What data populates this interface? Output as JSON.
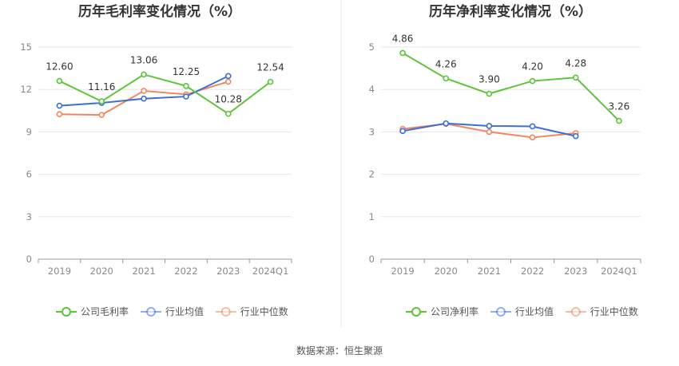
{
  "source": "数据来源：恒生聚源",
  "colors": {
    "company": "#5ec43a",
    "avg": "#3b6fd6",
    "median": "#f0875f"
  },
  "chart_data": [
    {
      "type": "line",
      "title": "历年毛利率变化情况（%）",
      "categories": [
        "2019",
        "2020",
        "2021",
        "2022",
        "2023",
        "2024Q1"
      ],
      "ylim": [
        0,
        15
      ],
      "yticks": [
        0,
        3,
        6,
        9,
        12,
        15
      ],
      "grid": true,
      "legend": "bottom",
      "series": [
        {
          "name": "公司毛利率",
          "color": "#5ec43a",
          "values": [
            12.6,
            11.16,
            13.06,
            12.25,
            10.28,
            12.54
          ],
          "labels": [
            "12.60",
            "11.16",
            "13.06",
            "12.25",
            "10.28",
            "12.54"
          ]
        },
        {
          "name": "行业均值",
          "color": "#3b6fd6",
          "values": [
            10.85,
            11.05,
            11.35,
            11.5,
            12.95,
            null
          ]
        },
        {
          "name": "行业中位数",
          "color": "#f0875f",
          "values": [
            10.25,
            10.2,
            11.9,
            11.65,
            12.55,
            null
          ]
        }
      ]
    },
    {
      "type": "line",
      "title": "历年净利率变化情况（%）",
      "categories": [
        "2019",
        "2020",
        "2021",
        "2022",
        "2023",
        "2024Q1"
      ],
      "ylim": [
        0,
        5
      ],
      "yticks": [
        0,
        1,
        2,
        3,
        4,
        5
      ],
      "grid": true,
      "legend": "bottom",
      "series": [
        {
          "name": "公司净利率",
          "color": "#5ec43a",
          "values": [
            4.86,
            4.26,
            3.9,
            4.2,
            4.28,
            3.26
          ],
          "labels": [
            "4.86",
            "4.26",
            "3.90",
            "4.20",
            "4.28",
            "3.26"
          ]
        },
        {
          "name": "行业均值",
          "color": "#3b6fd6",
          "values": [
            3.02,
            3.2,
            3.14,
            3.13,
            2.9,
            null
          ]
        },
        {
          "name": "行业中位数",
          "color": "#f0875f",
          "values": [
            3.07,
            3.19,
            3.0,
            2.87,
            2.97,
            null
          ]
        }
      ]
    }
  ]
}
